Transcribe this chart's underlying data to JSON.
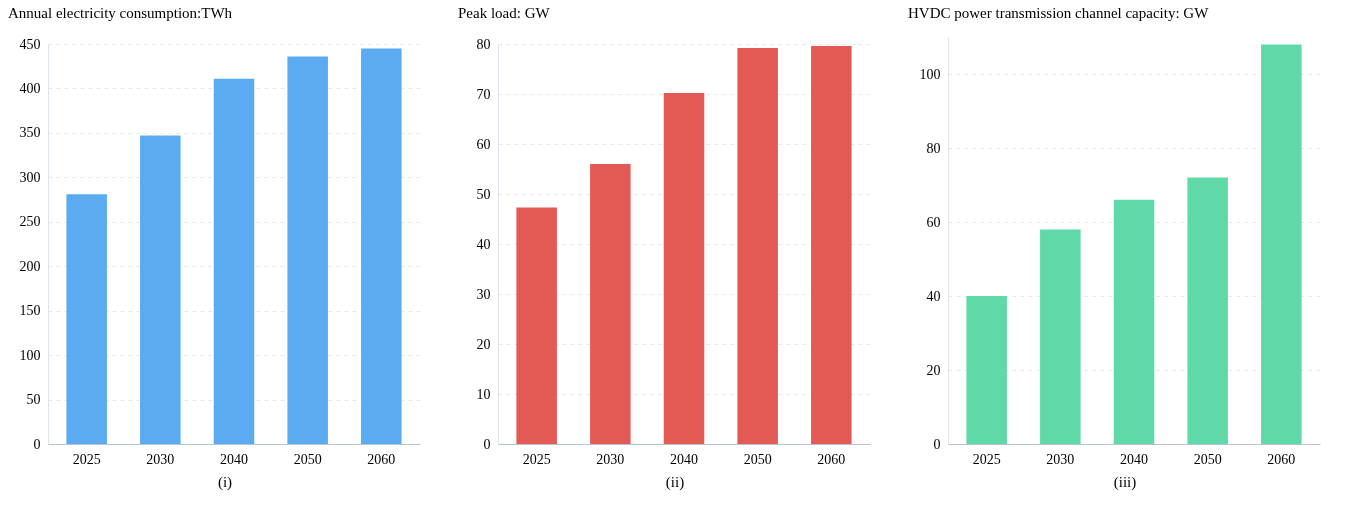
{
  "chart_data": [
    {
      "type": "bar",
      "title": "Annual electricity consumption:TWh",
      "categories": [
        "2025",
        "2030",
        "2040",
        "2050",
        "2060"
      ],
      "values": [
        281,
        347,
        411,
        436,
        445
      ],
      "color": "#5aabf0",
      "ylim": [
        0,
        450
      ],
      "yticks": [
        0,
        50,
        100,
        150,
        200,
        250,
        300,
        350,
        400,
        450
      ],
      "grid": "y",
      "annotations": [
        "(i)"
      ]
    },
    {
      "type": "bar",
      "title": "Peak load: GW",
      "categories": [
        "2025",
        "2030",
        "2040",
        "2050",
        "2060"
      ],
      "values": [
        47.3,
        56,
        70.2,
        79.2,
        79.6
      ],
      "color": "#e35a55",
      "ylim": [
        0,
        80
      ],
      "yticks": [
        0,
        10,
        20,
        30,
        40,
        50,
        60,
        70,
        80
      ],
      "grid": "y",
      "annotations": [
        "(ii)"
      ]
    },
    {
      "type": "bar",
      "title": "HVDC power transmission channel capacity: GW",
      "categories": [
        "2025",
        "2030",
        "2040",
        "2050",
        "2060"
      ],
      "values": [
        40,
        58,
        66,
        72,
        108
      ],
      "color": "#5fd9a8",
      "ylim": [
        0,
        110
      ],
      "yticks": [
        0,
        20,
        40,
        60,
        80,
        100
      ],
      "grid": "y",
      "annotations": [
        "(iii)"
      ]
    }
  ]
}
